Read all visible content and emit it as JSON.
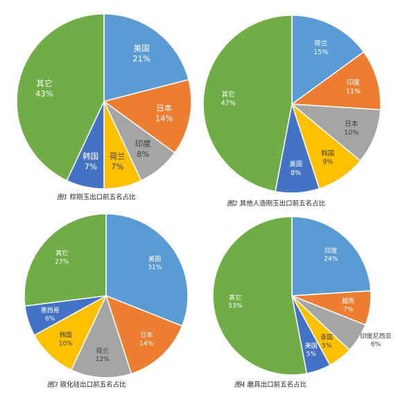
{
  "captions": [
    {
      "num": "图1",
      "text": "棕刚玉出口前五名占比"
    },
    {
      "num": "图2",
      "text": "其他人造刚玉出口前五名占比"
    },
    {
      "num": "图3",
      "text": "碳化硅出口前五名占比"
    },
    {
      "num": "图4",
      "text": "磨具出口前五名占比"
    }
  ],
  "colors": {
    "blue": "#5B9BD5",
    "orange": "#ED7D31",
    "gray": "#A5A5A5",
    "gold": "#FFC000",
    "darkblue": "#4472C4",
    "green": "#70AD47"
  },
  "chart_data": [
    {
      "type": "pie",
      "title": "棕刚玉出口前五名占比",
      "slices": [
        {
          "label": "美国",
          "value": 21,
          "pct": "21%",
          "color": "blue"
        },
        {
          "label": "日本",
          "value": 14,
          "pct": "14%",
          "color": "orange"
        },
        {
          "label": "印度",
          "value": 8,
          "pct": "8%",
          "color": "gray"
        },
        {
          "label": "荷兰",
          "value": 7,
          "pct": "7%",
          "color": "gold"
        },
        {
          "label": "韩国",
          "value": 7,
          "pct": "7%",
          "color": "darkblue"
        },
        {
          "label": "其它",
          "value": 43,
          "pct": "43%",
          "color": "green"
        }
      ]
    },
    {
      "type": "pie",
      "title": "其他人造刚玉出口前五名占比",
      "slices": [
        {
          "label": "荷兰",
          "value": 15,
          "pct": "15%",
          "color": "blue"
        },
        {
          "label": "印度",
          "value": 11,
          "pct": "11%",
          "color": "orange"
        },
        {
          "label": "日本",
          "value": 10,
          "pct": "10%",
          "color": "gray"
        },
        {
          "label": "韩国",
          "value": 9,
          "pct": "9%",
          "color": "gold"
        },
        {
          "label": "美国",
          "value": 8,
          "pct": "8%",
          "color": "darkblue"
        },
        {
          "label": "其它",
          "value": 47,
          "pct": "47%",
          "color": "green"
        }
      ]
    },
    {
      "type": "pie",
      "title": "碳化硅出口前五名占比",
      "slices": [
        {
          "label": "美国",
          "value": 31,
          "pct": "31%",
          "color": "blue"
        },
        {
          "label": "日本",
          "value": 14,
          "pct": "14%",
          "color": "orange"
        },
        {
          "label": "荷兰",
          "value": 12,
          "pct": "12%",
          "color": "gray"
        },
        {
          "label": "韩国",
          "value": 10,
          "pct": "10%",
          "color": "gold"
        },
        {
          "label": "墨西哥",
          "value": 6,
          "pct": "6%",
          "color": "darkblue"
        },
        {
          "label": "其它",
          "value": 27,
          "pct": "27%",
          "color": "green"
        }
      ]
    },
    {
      "type": "pie",
      "title": "磨具出口前五名占比",
      "slices": [
        {
          "label": "印度",
          "value": 24,
          "pct": "24%",
          "color": "blue"
        },
        {
          "label": "越南",
          "value": 7,
          "pct": "7%",
          "color": "orange"
        },
        {
          "label": "印度尼西亚",
          "value": 6,
          "pct": "6%",
          "color": "gray"
        },
        {
          "label": "泰国",
          "value": 5,
          "pct": "5%",
          "color": "gold"
        },
        {
          "label": "美国",
          "value": 5,
          "pct": "5%",
          "color": "darkblue"
        },
        {
          "label": "其它",
          "value": 53,
          "pct": "53%",
          "color": "green"
        }
      ]
    }
  ]
}
